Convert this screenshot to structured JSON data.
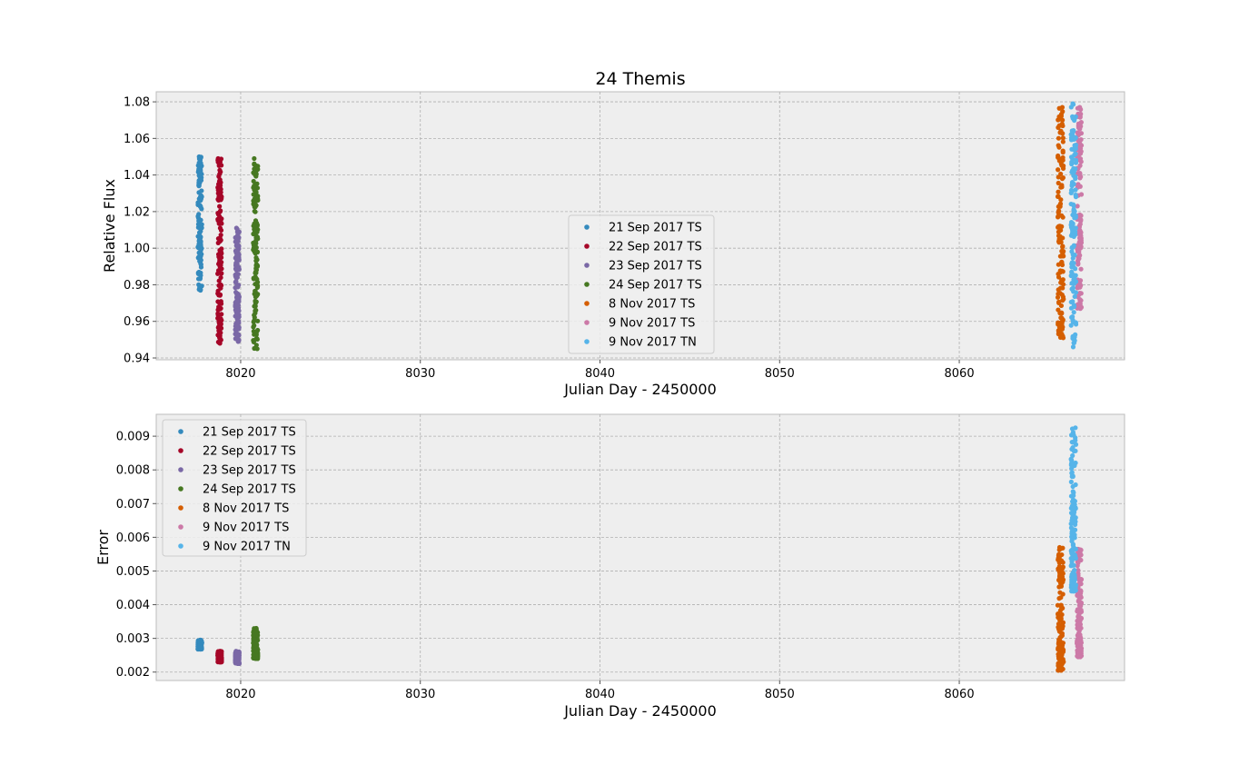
{
  "chart_data": [
    {
      "type": "scatter",
      "title": "24 Themis",
      "xlabel": "Julian Day  - 2450000",
      "ylabel": "Relative Flux",
      "xlim": [
        8015.3,
        8069.2
      ],
      "ylim": [
        0.939,
        1.0855
      ],
      "xticks": [
        8020,
        8030,
        8040,
        8050,
        8060
      ],
      "yticks": [
        0.94,
        0.96,
        0.98,
        1.0,
        1.02,
        1.04,
        1.06,
        1.08
      ],
      "ytick_decimals": 2,
      "grid": true,
      "legend_position": "center",
      "series": [
        {
          "name": "21 Sep 2017 TS",
          "color": "#348ABD",
          "x_range": [
            8017.62,
            8017.84
          ],
          "y_range": [
            0.977,
            1.05
          ]
        },
        {
          "name": "22 Sep 2017 TS",
          "color": "#A60628",
          "x_range": [
            8018.72,
            8018.94
          ],
          "y_range": [
            0.948,
            1.049
          ]
        },
        {
          "name": "23 Sep 2017 TS",
          "color": "#7A68A6",
          "x_range": [
            8019.7,
            8019.92
          ],
          "y_range": [
            0.949,
            1.011
          ]
        },
        {
          "name": "24 Sep 2017 TS",
          "color": "#467821",
          "x_range": [
            8020.7,
            8020.96
          ],
          "y_range": [
            0.945,
            1.049
          ]
        },
        {
          "name": "8 Nov 2017 TS",
          "color": "#D55E00",
          "x_range": [
            8065.48,
            8065.8
          ],
          "y_range": [
            0.951,
            1.077
          ]
        },
        {
          "name": "9 Nov 2017 TS",
          "color": "#CC79A7",
          "x_range": [
            8066.55,
            8066.8
          ],
          "y_range": [
            0.967,
            1.077
          ]
        },
        {
          "name": "9 Nov 2017 TN",
          "color": "#56B4E9",
          "x_range": [
            8066.22,
            8066.5
          ],
          "y_range": [
            0.946,
            1.079
          ]
        }
      ]
    },
    {
      "type": "scatter",
      "title": "",
      "xlabel": "Julian Day - 2450000",
      "ylabel": "Error",
      "xlim": [
        8015.3,
        8069.2
      ],
      "ylim": [
        0.00175,
        0.00965
      ],
      "xticks": [
        8020,
        8030,
        8040,
        8050,
        8060
      ],
      "yticks": [
        0.002,
        0.003,
        0.004,
        0.005,
        0.006,
        0.007,
        0.008,
        0.009
      ],
      "ytick_decimals": 3,
      "grid": true,
      "legend_position": "upper-left",
      "series": [
        {
          "name": "21 Sep 2017 TS",
          "color": "#348ABD",
          "x_range": [
            8017.62,
            8017.84
          ],
          "y_range": [
            0.00268,
            0.00295
          ]
        },
        {
          "name": "22 Sep 2017 TS",
          "color": "#A60628",
          "x_range": [
            8018.72,
            8018.94
          ],
          "y_range": [
            0.0023,
            0.00262
          ]
        },
        {
          "name": "23 Sep 2017 TS",
          "color": "#7A68A6",
          "x_range": [
            8019.7,
            8019.92
          ],
          "y_range": [
            0.00225,
            0.00262
          ]
        },
        {
          "name": "24 Sep 2017 TS",
          "color": "#467821",
          "x_range": [
            8020.7,
            8020.96
          ],
          "y_range": [
            0.0024,
            0.0033
          ]
        },
        {
          "name": "8 Nov 2017 TS",
          "color": "#D55E00",
          "x_range": [
            8065.48,
            8065.8
          ],
          "y_range": [
            0.00205,
            0.0057
          ]
        },
        {
          "name": "9 Nov 2017 TS",
          "color": "#CC79A7",
          "x_range": [
            8066.55,
            8066.8
          ],
          "y_range": [
            0.00245,
            0.00565
          ]
        },
        {
          "name": "9 Nov 2017 TN",
          "color": "#56B4E9",
          "x_range": [
            8066.22,
            8066.5
          ],
          "y_range": [
            0.0044,
            0.00925
          ]
        }
      ]
    }
  ]
}
